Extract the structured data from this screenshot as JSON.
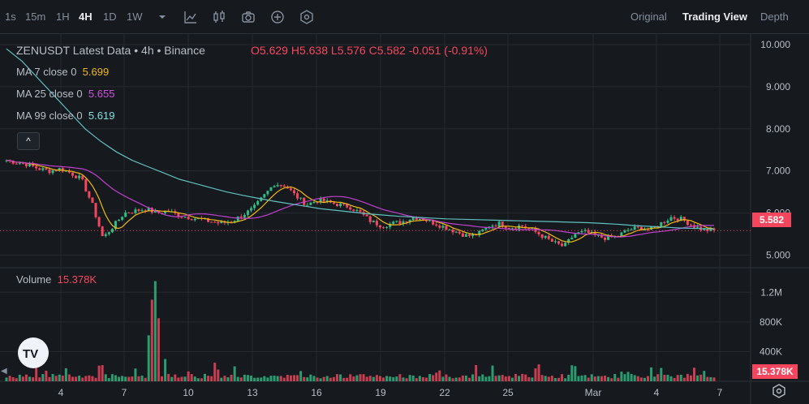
{
  "timeframes": [
    "1s",
    "15m",
    "1H",
    "4H",
    "1D",
    "1W"
  ],
  "active_timeframe": "4H",
  "views": [
    "Original",
    "Trading View",
    "Depth"
  ],
  "active_view": "Trading View",
  "icons": [
    "chevron-down-icon",
    "indicators-icon",
    "candle-type-icon",
    "screenshot-icon",
    "add-icon",
    "settings-hex-icon"
  ],
  "legend": {
    "title": "ZENUSDT Latest Data • 4h • Binance",
    "o_label": "O",
    "o": "5.629",
    "h_label": "H",
    "h": "5.638",
    "l_label": "L",
    "l": "5.576",
    "c_label": "C",
    "c": "5.582",
    "change": "-0.051",
    "change_pct": "(-0.91%)",
    "ma7_label": "MA 7 close 0",
    "ma7": "5.699",
    "ma25_label": "MA 25 close 0",
    "ma25": "5.655",
    "ma99_label": "MA 99 close 0",
    "ma99": "5.619",
    "volume_label": "Volume",
    "volume": "15.378K"
  },
  "collapse_label": "^",
  "last_price_tag": "5.582",
  "last_volume_tag": "15.378K",
  "colors": {
    "up": "#2ebd85",
    "down": "#f6465d",
    "ma7": "#f0b90b",
    "ma25": "#c040d0",
    "ma99": "#5fc0c0",
    "grid": "#262a30",
    "text": "#b7bdc6"
  },
  "chart_data": {
    "type": "candlestick",
    "price_axis": {
      "min": 4.7,
      "max": 10.25,
      "ticks": [
        "10.000",
        "9.000",
        "8.000",
        "7.000",
        "6.000",
        "5.000"
      ]
    },
    "volume_axis": {
      "min": 0,
      "max": 1400000,
      "ticks": [
        "1.2M",
        "800K",
        "400K"
      ]
    },
    "x_ticks": [
      "4",
      "7",
      "10",
      "13",
      "16",
      "19",
      "22",
      "25",
      "Mar",
      "4",
      "7"
    ],
    "last_price": 5.582,
    "price_series": [
      7.25,
      7.2,
      7.15,
      7.05,
      7.0,
      7.05,
      6.95,
      6.8,
      6.2,
      5.4,
      5.7,
      6.0,
      6.05,
      6.1,
      6.0,
      6.05,
      5.95,
      5.9,
      5.85,
      5.8,
      5.75,
      5.8,
      5.95,
      6.1,
      6.4,
      6.7,
      6.65,
      6.4,
      6.2,
      6.3,
      6.25,
      6.2,
      6.15,
      6.0,
      5.8,
      5.7,
      5.75,
      5.8,
      5.9,
      5.85,
      5.75,
      5.65,
      5.55,
      5.45,
      5.5,
      5.7,
      5.75,
      5.65,
      5.7,
      5.6,
      5.45,
      5.3,
      5.2,
      5.5,
      5.55,
      5.45,
      5.4,
      5.45,
      5.6,
      5.65,
      5.6,
      5.75,
      5.9,
      5.85,
      5.7,
      5.6,
      5.58
    ],
    "ma99_series": [
      9.9,
      9.6,
      9.2,
      8.8,
      8.4,
      8.0,
      7.7,
      7.45,
      7.25,
      7.1,
      6.95,
      6.8,
      6.7,
      6.6,
      6.5,
      6.42,
      6.35,
      6.28,
      6.22,
      6.16,
      6.1,
      6.06,
      6.02,
      5.98,
      5.95,
      5.92,
      5.9,
      5.88,
      5.86,
      5.85,
      5.84,
      5.83,
      5.82,
      5.81,
      5.8,
      5.79,
      5.78,
      5.77,
      5.75,
      5.73,
      5.7,
      5.68,
      5.66,
      5.64,
      5.63,
      5.62
    ]
  }
}
